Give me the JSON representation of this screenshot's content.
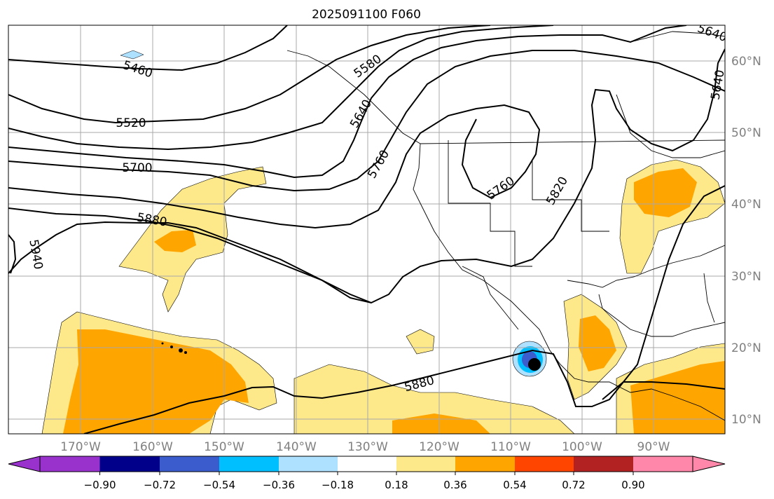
{
  "title": "2025091100 F060",
  "map": {
    "lon_labels": [
      "170°W",
      "160°W",
      "150°W",
      "140°W",
      "130°W",
      "120°W",
      "110°W",
      "100°W",
      "90°W"
    ],
    "lat_labels": [
      "60°N",
      "50°N",
      "40°N",
      "30°N",
      "20°N",
      "10°N"
    ],
    "contour_labels": [
      "5460",
      "5520",
      "5580",
      "5640",
      "5700",
      "5760",
      "5760",
      "5820",
      "5880",
      "5880",
      "5940",
      "5640",
      "5640"
    ],
    "colors": {
      "light_yellow": "#fde88a",
      "orange": "#ffa500",
      "light_blue": "#aee0ff",
      "blue": "#00bfff",
      "dark_blue": "#3a5ccc"
    }
  },
  "colorbar": {
    "ticks": [
      "−0.90",
      "−0.72",
      "−0.54",
      "−0.36",
      "−0.18",
      "0.18",
      "0.36",
      "0.54",
      "0.72",
      "0.90"
    ],
    "colors": [
      "#9932cc",
      "#00008b",
      "#3a5ccc",
      "#00bfff",
      "#aee0ff",
      "#ffffff",
      "#fde88a",
      "#ffa500",
      "#ff4500",
      "#b22222",
      "#ff88aa"
    ]
  }
}
